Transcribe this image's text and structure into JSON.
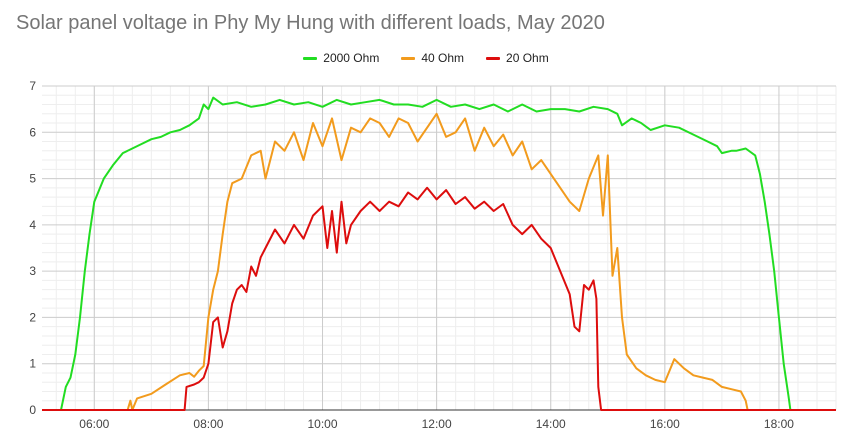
{
  "chart_data": {
    "type": "line",
    "title": "Solar panel voltage in Phy My Hung with different loads, May 2020",
    "xlabel": "",
    "ylabel": "",
    "xlim": [
      "05:05",
      "19:00"
    ],
    "ylim": [
      0,
      7
    ],
    "x_ticks": [
      "06:00",
      "08:00",
      "10:00",
      "12:00",
      "14:00",
      "16:00",
      "18:00"
    ],
    "y_ticks": [
      "0",
      "1",
      "2",
      "3",
      "4",
      "5",
      "6",
      "7"
    ],
    "grid": true,
    "legend": "top-center",
    "series": [
      {
        "name": "2000 Ohm",
        "color": "#22dd22",
        "points": [
          [
            "05:05",
            0
          ],
          [
            "05:25",
            0
          ],
          [
            "05:30",
            0.5
          ],
          [
            "05:35",
            0.7
          ],
          [
            "05:40",
            1.2
          ],
          [
            "05:45",
            2.0
          ],
          [
            "05:50",
            3.0
          ],
          [
            "05:55",
            3.8
          ],
          [
            "06:00",
            4.5
          ],
          [
            "06:10",
            5.0
          ],
          [
            "06:20",
            5.3
          ],
          [
            "06:30",
            5.55
          ],
          [
            "06:40",
            5.65
          ],
          [
            "06:50",
            5.75
          ],
          [
            "07:00",
            5.85
          ],
          [
            "07:10",
            5.9
          ],
          [
            "07:20",
            6.0
          ],
          [
            "07:30",
            6.05
          ],
          [
            "07:40",
            6.15
          ],
          [
            "07:50",
            6.3
          ],
          [
            "07:55",
            6.6
          ],
          [
            "08:00",
            6.5
          ],
          [
            "08:05",
            6.75
          ],
          [
            "08:15",
            6.6
          ],
          [
            "08:30",
            6.65
          ],
          [
            "08:45",
            6.55
          ],
          [
            "09:00",
            6.6
          ],
          [
            "09:15",
            6.7
          ],
          [
            "09:30",
            6.6
          ],
          [
            "09:45",
            6.65
          ],
          [
            "10:00",
            6.55
          ],
          [
            "10:15",
            6.7
          ],
          [
            "10:30",
            6.6
          ],
          [
            "10:45",
            6.65
          ],
          [
            "11:00",
            6.7
          ],
          [
            "11:15",
            6.6
          ],
          [
            "11:30",
            6.6
          ],
          [
            "11:45",
            6.55
          ],
          [
            "12:00",
            6.7
          ],
          [
            "12:15",
            6.55
          ],
          [
            "12:30",
            6.6
          ],
          [
            "12:45",
            6.5
          ],
          [
            "13:00",
            6.6
          ],
          [
            "13:15",
            6.45
          ],
          [
            "13:30",
            6.6
          ],
          [
            "13:45",
            6.45
          ],
          [
            "14:00",
            6.5
          ],
          [
            "14:15",
            6.5
          ],
          [
            "14:30",
            6.45
          ],
          [
            "14:45",
            6.55
          ],
          [
            "15:00",
            6.5
          ],
          [
            "15:10",
            6.4
          ],
          [
            "15:15",
            6.15
          ],
          [
            "15:25",
            6.3
          ],
          [
            "15:35",
            6.2
          ],
          [
            "15:45",
            6.05
          ],
          [
            "16:00",
            6.15
          ],
          [
            "16:15",
            6.1
          ],
          [
            "16:30",
            5.95
          ],
          [
            "16:45",
            5.8
          ],
          [
            "16:55",
            5.7
          ],
          [
            "17:00",
            5.55
          ],
          [
            "17:10",
            5.6
          ],
          [
            "17:15",
            5.6
          ],
          [
            "17:25",
            5.65
          ],
          [
            "17:35",
            5.5
          ],
          [
            "17:40",
            5.1
          ],
          [
            "17:45",
            4.5
          ],
          [
            "17:50",
            3.8
          ],
          [
            "17:55",
            3.0
          ],
          [
            "18:00",
            2.0
          ],
          [
            "18:05",
            1.0
          ],
          [
            "18:10",
            0.3
          ],
          [
            "18:12",
            0
          ],
          [
            "19:00",
            0
          ]
        ]
      },
      {
        "name": "40 Ohm",
        "color": "#f29b1d",
        "points": [
          [
            "05:05",
            0
          ],
          [
            "06:35",
            0
          ],
          [
            "06:38",
            0.2
          ],
          [
            "06:40",
            0
          ],
          [
            "06:45",
            0.25
          ],
          [
            "07:00",
            0.35
          ],
          [
            "07:15",
            0.55
          ],
          [
            "07:30",
            0.75
          ],
          [
            "07:40",
            0.8
          ],
          [
            "07:45",
            0.72
          ],
          [
            "07:50",
            0.85
          ],
          [
            "07:55",
            0.95
          ],
          [
            "08:00",
            2.0
          ],
          [
            "08:05",
            2.6
          ],
          [
            "08:10",
            3.0
          ],
          [
            "08:15",
            3.8
          ],
          [
            "08:20",
            4.5
          ],
          [
            "08:25",
            4.9
          ],
          [
            "08:35",
            5.0
          ],
          [
            "08:45",
            5.5
          ],
          [
            "08:55",
            5.6
          ],
          [
            "09:00",
            5.0
          ],
          [
            "09:10",
            5.8
          ],
          [
            "09:20",
            5.6
          ],
          [
            "09:30",
            6.0
          ],
          [
            "09:40",
            5.4
          ],
          [
            "09:50",
            6.2
          ],
          [
            "10:00",
            5.7
          ],
          [
            "10:10",
            6.3
          ],
          [
            "10:20",
            5.4
          ],
          [
            "10:30",
            6.1
          ],
          [
            "10:40",
            6.0
          ],
          [
            "10:50",
            6.3
          ],
          [
            "11:00",
            6.2
          ],
          [
            "11:10",
            5.9
          ],
          [
            "11:20",
            6.3
          ],
          [
            "11:30",
            6.2
          ],
          [
            "11:40",
            5.8
          ],
          [
            "11:50",
            6.1
          ],
          [
            "12:00",
            6.4
          ],
          [
            "12:10",
            5.9
          ],
          [
            "12:20",
            6.0
          ],
          [
            "12:30",
            6.3
          ],
          [
            "12:40",
            5.6
          ],
          [
            "12:50",
            6.1
          ],
          [
            "13:00",
            5.7
          ],
          [
            "13:10",
            5.95
          ],
          [
            "13:20",
            5.5
          ],
          [
            "13:30",
            5.8
          ],
          [
            "13:40",
            5.2
          ],
          [
            "13:50",
            5.4
          ],
          [
            "14:00",
            5.1
          ],
          [
            "14:10",
            4.8
          ],
          [
            "14:20",
            4.5
          ],
          [
            "14:30",
            4.3
          ],
          [
            "14:40",
            5.0
          ],
          [
            "14:50",
            5.5
          ],
          [
            "14:55",
            4.2
          ],
          [
            "15:00",
            5.5
          ],
          [
            "15:05",
            2.9
          ],
          [
            "15:10",
            3.5
          ],
          [
            "15:15",
            2.0
          ],
          [
            "15:20",
            1.2
          ],
          [
            "15:30",
            0.9
          ],
          [
            "15:40",
            0.75
          ],
          [
            "15:50",
            0.65
          ],
          [
            "16:00",
            0.6
          ],
          [
            "16:10",
            1.1
          ],
          [
            "16:20",
            0.9
          ],
          [
            "16:30",
            0.75
          ],
          [
            "16:40",
            0.7
          ],
          [
            "16:50",
            0.65
          ],
          [
            "17:00",
            0.5
          ],
          [
            "17:10",
            0.45
          ],
          [
            "17:20",
            0.4
          ],
          [
            "17:25",
            0.2
          ],
          [
            "17:27",
            0
          ],
          [
            "19:00",
            0
          ]
        ]
      },
      {
        "name": "20 Ohm",
        "color": "#dd0d0d",
        "points": [
          [
            "05:05",
            0
          ],
          [
            "07:35",
            0
          ],
          [
            "07:37",
            0.5
          ],
          [
            "07:45",
            0.55
          ],
          [
            "07:50",
            0.6
          ],
          [
            "07:55",
            0.7
          ],
          [
            "08:00",
            1.0
          ],
          [
            "08:05",
            1.9
          ],
          [
            "08:10",
            2.0
          ],
          [
            "08:15",
            1.35
          ],
          [
            "08:20",
            1.7
          ],
          [
            "08:25",
            2.3
          ],
          [
            "08:30",
            2.6
          ],
          [
            "08:35",
            2.7
          ],
          [
            "08:40",
            2.55
          ],
          [
            "08:45",
            3.1
          ],
          [
            "08:50",
            2.9
          ],
          [
            "08:55",
            3.3
          ],
          [
            "09:00",
            3.5
          ],
          [
            "09:10",
            3.9
          ],
          [
            "09:20",
            3.6
          ],
          [
            "09:30",
            4.0
          ],
          [
            "09:40",
            3.7
          ],
          [
            "09:50",
            4.2
          ],
          [
            "10:00",
            4.4
          ],
          [
            "10:05",
            3.5
          ],
          [
            "10:10",
            4.3
          ],
          [
            "10:15",
            3.4
          ],
          [
            "10:20",
            4.5
          ],
          [
            "10:25",
            3.6
          ],
          [
            "10:30",
            4.0
          ],
          [
            "10:40",
            4.3
          ],
          [
            "10:50",
            4.5
          ],
          [
            "11:00",
            4.3
          ],
          [
            "11:10",
            4.5
          ],
          [
            "11:20",
            4.4
          ],
          [
            "11:30",
            4.7
          ],
          [
            "11:40",
            4.55
          ],
          [
            "11:50",
            4.8
          ],
          [
            "12:00",
            4.55
          ],
          [
            "12:10",
            4.75
          ],
          [
            "12:20",
            4.45
          ],
          [
            "12:30",
            4.6
          ],
          [
            "12:40",
            4.35
          ],
          [
            "12:50",
            4.5
          ],
          [
            "13:00",
            4.3
          ],
          [
            "13:10",
            4.45
          ],
          [
            "13:20",
            4.0
          ],
          [
            "13:30",
            3.8
          ],
          [
            "13:40",
            4.0
          ],
          [
            "13:50",
            3.7
          ],
          [
            "14:00",
            3.5
          ],
          [
            "14:10",
            3.0
          ],
          [
            "14:20",
            2.5
          ],
          [
            "14:25",
            1.8
          ],
          [
            "14:30",
            1.7
          ],
          [
            "14:35",
            2.7
          ],
          [
            "14:40",
            2.6
          ],
          [
            "14:45",
            2.8
          ],
          [
            "14:48",
            2.4
          ],
          [
            "14:50",
            0.5
          ],
          [
            "14:53",
            0
          ],
          [
            "19:00",
            0
          ]
        ]
      }
    ]
  }
}
